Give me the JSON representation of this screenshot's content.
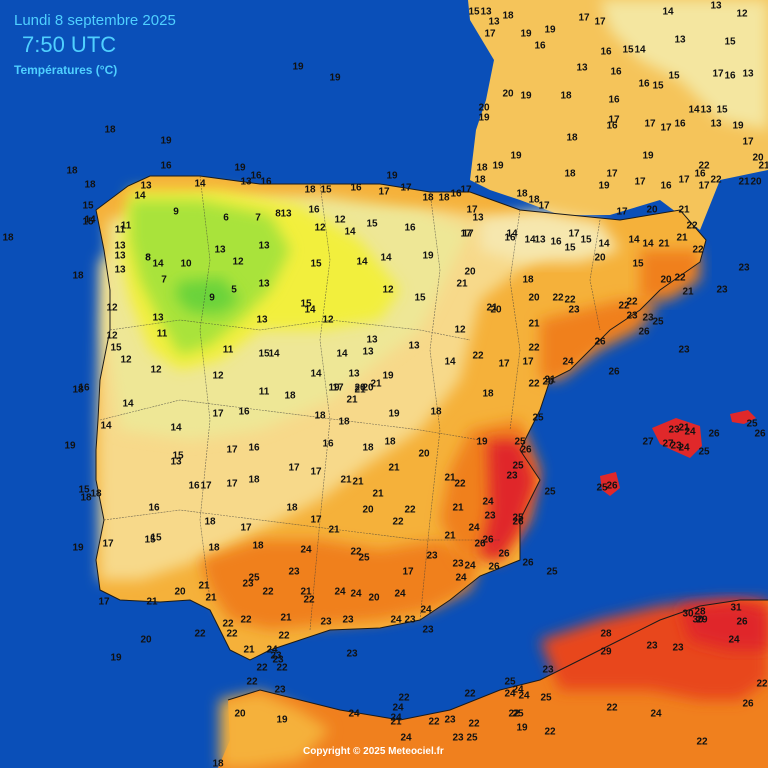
{
  "header": {
    "date": "Lundi 8 septembre 2025",
    "time": "7:50 UTC",
    "variable": "Températures (°C)"
  },
  "copyright": "Copyright © 2025 Meteociel.fr",
  "colors": {
    "sea": "#0a4fb8",
    "land_cool": "#e8e48a",
    "land_mild": "#f7d98a",
    "land_warm": "#f5b13a",
    "land_hot": "#f0801e",
    "land_vhot": "#e8461e",
    "land_red": "#e0282a",
    "land_yellow": "#f2ef3c",
    "land_green": "#a9e33a",
    "land_darkgreen": "#6ad33a",
    "header_text": "#4fd0ff"
  },
  "stations": [
    [
      "15",
      474,
      12
    ],
    [
      "13",
      486,
      12
    ],
    [
      "13",
      494,
      22
    ],
    [
      "18",
      508,
      16
    ],
    [
      "17",
      490,
      34
    ],
    [
      "17",
      584,
      18
    ],
    [
      "17",
      600,
      22
    ],
    [
      "14",
      668,
      12
    ],
    [
      "13",
      716,
      6
    ],
    [
      "12",
      742,
      14
    ],
    [
      "19",
      526,
      34
    ],
    [
      "19",
      550,
      30
    ],
    [
      "16",
      540,
      46
    ],
    [
      "19",
      298,
      67
    ],
    [
      "19",
      335,
      78
    ],
    [
      "18",
      110,
      130
    ],
    [
      "19",
      166,
      141
    ],
    [
      "18",
      72,
      171
    ],
    [
      "16",
      166,
      166
    ],
    [
      "18",
      90,
      185
    ],
    [
      "13",
      582,
      68
    ],
    [
      "16",
      606,
      52
    ],
    [
      "15",
      628,
      50
    ],
    [
      "14",
      640,
      50
    ],
    [
      "16",
      616,
      72
    ],
    [
      "15",
      674,
      76
    ],
    [
      "13",
      680,
      40
    ],
    [
      "15",
      730,
      42
    ],
    [
      "17",
      718,
      74
    ],
    [
      "16",
      730,
      76
    ],
    [
      "13",
      748,
      74
    ],
    [
      "18",
      566,
      96
    ],
    [
      "16",
      614,
      100
    ],
    [
      "16",
      644,
      84
    ],
    [
      "15",
      658,
      86
    ],
    [
      "14",
      694,
      110
    ],
    [
      "13",
      706,
      110
    ],
    [
      "15",
      722,
      110
    ],
    [
      "20",
      484,
      108
    ],
    [
      "19",
      484,
      118
    ],
    [
      "20",
      508,
      94
    ],
    [
      "19",
      526,
      96
    ],
    [
      "18",
      572,
      138
    ],
    [
      "17",
      614,
      120
    ],
    [
      "16",
      612,
      126
    ],
    [
      "17",
      650,
      124
    ],
    [
      "17",
      666,
      128
    ],
    [
      "16",
      680,
      124
    ],
    [
      "13",
      716,
      124
    ],
    [
      "19",
      738,
      126
    ],
    [
      "17",
      748,
      142
    ],
    [
      "20",
      758,
      158
    ],
    [
      "21",
      744,
      182
    ],
    [
      "20",
      756,
      182
    ],
    [
      "21",
      764,
      166
    ],
    [
      "18",
      482,
      168
    ],
    [
      "19",
      498,
      166
    ],
    [
      "19",
      516,
      156
    ],
    [
      "18",
      480,
      180
    ],
    [
      "18",
      570,
      174
    ],
    [
      "19",
      604,
      186
    ],
    [
      "17",
      612,
      174
    ],
    [
      "19",
      648,
      156
    ],
    [
      "17",
      640,
      182
    ],
    [
      "16",
      666,
      186
    ],
    [
      "17",
      684,
      180
    ],
    [
      "17",
      704,
      186
    ],
    [
      "22",
      704,
      166
    ],
    [
      "22",
      716,
      180
    ],
    [
      "16",
      700,
      174
    ],
    [
      "19",
      240,
      168
    ],
    [
      "16",
      256,
      176
    ],
    [
      "13",
      246,
      182
    ],
    [
      "16",
      266,
      182
    ],
    [
      "14",
      200,
      184
    ],
    [
      "13",
      146,
      186
    ],
    [
      "14",
      140,
      196
    ],
    [
      "18",
      310,
      190
    ],
    [
      "15",
      326,
      190
    ],
    [
      "16",
      356,
      188
    ],
    [
      "17",
      384,
      192
    ],
    [
      "17",
      406,
      188
    ],
    [
      "18",
      428,
      198
    ],
    [
      "18",
      444,
      198
    ],
    [
      "16",
      456,
      194
    ],
    [
      "17",
      466,
      190
    ],
    [
      "17",
      472,
      210
    ],
    [
      "18",
      522,
      194
    ],
    [
      "17",
      544,
      206
    ],
    [
      "18",
      534,
      200
    ],
    [
      "19",
      392,
      176
    ],
    [
      "15",
      88,
      206
    ],
    [
      "14",
      90,
      220
    ],
    [
      "11",
      126,
      226
    ],
    [
      "9",
      176,
      212
    ],
    [
      "6",
      226,
      218
    ],
    [
      "7",
      258,
      218
    ],
    [
      "8",
      278,
      214
    ],
    [
      "16",
      314,
      210
    ],
    [
      "13",
      286,
      214
    ],
    [
      "12",
      320,
      228
    ],
    [
      "12",
      340,
      220
    ],
    [
      "14",
      350,
      232
    ],
    [
      "15",
      372,
      224
    ],
    [
      "16",
      410,
      228
    ],
    [
      "13",
      478,
      218
    ],
    [
      "17",
      468,
      234
    ],
    [
      "17",
      466,
      234
    ],
    [
      "14",
      512,
      234
    ],
    [
      "16",
      510,
      238
    ],
    [
      "14",
      530,
      240
    ],
    [
      "13",
      540,
      240
    ],
    [
      "16",
      556,
      242
    ],
    [
      "17",
      574,
      234
    ],
    [
      "15",
      570,
      248
    ],
    [
      "15",
      586,
      240
    ],
    [
      "14",
      604,
      244
    ],
    [
      "14",
      634,
      240
    ],
    [
      "17",
      622,
      212
    ],
    [
      "20",
      652,
      210
    ],
    [
      "21",
      684,
      210
    ],
    [
      "22",
      692,
      226
    ],
    [
      "21",
      682,
      238
    ],
    [
      "14",
      648,
      244
    ],
    [
      "21",
      664,
      244
    ],
    [
      "22",
      698,
      250
    ],
    [
      "18",
      8,
      238
    ],
    [
      "15",
      88,
      222
    ],
    [
      "11",
      120,
      230
    ],
    [
      "13",
      120,
      246
    ],
    [
      "13",
      120,
      256
    ],
    [
      "14",
      158,
      264
    ],
    [
      "13",
      220,
      250
    ],
    [
      "13",
      264,
      246
    ],
    [
      "8",
      148,
      258
    ],
    [
      "10",
      186,
      264
    ],
    [
      "12",
      238,
      262
    ],
    [
      "15",
      316,
      264
    ],
    [
      "14",
      362,
      262
    ],
    [
      "14",
      386,
      258
    ],
    [
      "19",
      428,
      256
    ],
    [
      "20",
      470,
      272
    ],
    [
      "20",
      600,
      258
    ],
    [
      "15",
      638,
      264
    ],
    [
      "20",
      666,
      280
    ],
    [
      "22",
      680,
      278
    ],
    [
      "21",
      688,
      292
    ],
    [
      "18",
      78,
      276
    ],
    [
      "13",
      120,
      270
    ],
    [
      "8",
      148,
      258
    ],
    [
      "7",
      164,
      280
    ],
    [
      "9",
      212,
      298
    ],
    [
      "5",
      234,
      290
    ],
    [
      "13",
      264,
      284
    ],
    [
      "12",
      388,
      290
    ],
    [
      "21",
      462,
      284
    ],
    [
      "18",
      528,
      280
    ],
    [
      "20",
      534,
      298
    ],
    [
      "23",
      722,
      290
    ],
    [
      "23",
      744,
      268
    ],
    [
      "15",
      420,
      298
    ],
    [
      "15",
      306,
      304
    ],
    [
      "14",
      310,
      310
    ],
    [
      "12",
      112,
      308
    ],
    [
      "13",
      158,
      318
    ],
    [
      "21",
      492,
      308
    ],
    [
      "20",
      496,
      310
    ],
    [
      "22",
      558,
      298
    ],
    [
      "22",
      570,
      300
    ],
    [
      "23",
      574,
      310
    ],
    [
      "22",
      624,
      306
    ],
    [
      "22",
      632,
      302
    ],
    [
      "23",
      632,
      316
    ],
    [
      "23",
      648,
      318
    ],
    [
      "25",
      658,
      322
    ],
    [
      "26",
      644,
      332
    ],
    [
      "12",
      328,
      320
    ],
    [
      "13",
      262,
      320
    ],
    [
      "11",
      162,
      334
    ],
    [
      "12",
      112,
      336
    ],
    [
      "15",
      116,
      348
    ],
    [
      "12",
      126,
      360
    ],
    [
      "12",
      460,
      330
    ],
    [
      "21",
      534,
      324
    ],
    [
      "26",
      600,
      342
    ],
    [
      "13",
      372,
      340
    ],
    [
      "13",
      368,
      352
    ],
    [
      "15",
      264,
      354
    ],
    [
      "14",
      274,
      354
    ],
    [
      "14",
      342,
      354
    ],
    [
      "13",
      414,
      346
    ],
    [
      "11",
      228,
      350
    ],
    [
      "22",
      478,
      356
    ],
    [
      "22",
      534,
      348
    ],
    [
      "17",
      504,
      364
    ],
    [
      "17",
      528,
      362
    ],
    [
      "24",
      568,
      362
    ],
    [
      "23",
      684,
      350
    ],
    [
      "12",
      156,
      370
    ],
    [
      "12",
      218,
      376
    ],
    [
      "11",
      264,
      392
    ],
    [
      "14",
      316,
      374
    ],
    [
      "13",
      354,
      374
    ],
    [
      "17",
      338,
      388
    ],
    [
      "19",
      388,
      376
    ],
    [
      "21",
      376,
      384
    ],
    [
      "20",
      368,
      388
    ],
    [
      "19",
      334,
      388
    ],
    [
      "20",
      360,
      388
    ],
    [
      "21",
      360,
      390
    ],
    [
      "14",
      450,
      362
    ],
    [
      "26",
      614,
      372
    ],
    [
      "18",
      78,
      390
    ],
    [
      "16",
      84,
      388
    ],
    [
      "14",
      128,
      404
    ],
    [
      "18",
      290,
      396
    ],
    [
      "21",
      352,
      400
    ],
    [
      "22",
      534,
      384
    ],
    [
      "20",
      548,
      382
    ],
    [
      "21",
      550,
      380
    ],
    [
      "18",
      488,
      394
    ],
    [
      "17",
      218,
      414
    ],
    [
      "16",
      244,
      412
    ],
    [
      "18",
      320,
      416
    ],
    [
      "18",
      344,
      422
    ],
    [
      "19",
      394,
      414
    ],
    [
      "18",
      436,
      412
    ],
    [
      "25",
      538,
      418
    ],
    [
      "14",
      106,
      426
    ],
    [
      "14",
      176,
      428
    ],
    [
      "17",
      232,
      450
    ],
    [
      "16",
      254,
      448
    ],
    [
      "16",
      328,
      444
    ],
    [
      "18",
      368,
      448
    ],
    [
      "18",
      390,
      442
    ],
    [
      "19",
      482,
      442
    ],
    [
      "20",
      424,
      454
    ],
    [
      "25",
      520,
      442
    ],
    [
      "26",
      526,
      450
    ],
    [
      "25",
      518,
      466
    ],
    [
      "23",
      674,
      430
    ],
    [
      "21",
      684,
      428
    ],
    [
      "24",
      690,
      432
    ],
    [
      "26",
      714,
      434
    ],
    [
      "25",
      752,
      424
    ],
    [
      "26",
      760,
      434
    ],
    [
      "27",
      648,
      442
    ],
    [
      "27",
      668,
      444
    ],
    [
      "23",
      676,
      446
    ],
    [
      "24",
      684,
      448
    ],
    [
      "25",
      704,
      452
    ],
    [
      "19",
      70,
      446
    ],
    [
      "13",
      176,
      462
    ],
    [
      "15",
      178,
      456
    ],
    [
      "17",
      294,
      468
    ],
    [
      "17",
      316,
      472
    ],
    [
      "21",
      394,
      468
    ],
    [
      "21",
      450,
      478
    ],
    [
      "22",
      460,
      484
    ],
    [
      "23",
      512,
      476
    ],
    [
      "25",
      550,
      492
    ],
    [
      "15",
      84,
      490
    ],
    [
      "18",
      96,
      494
    ],
    [
      "18",
      86,
      498
    ],
    [
      "16",
      194,
      486
    ],
    [
      "17",
      206,
      486
    ],
    [
      "17",
      232,
      484
    ],
    [
      "18",
      254,
      480
    ],
    [
      "21",
      346,
      480
    ],
    [
      "21",
      358,
      482
    ],
    [
      "21",
      378,
      494
    ],
    [
      "24",
      488,
      502
    ],
    [
      "26",
      612,
      486
    ],
    [
      "25",
      602,
      488
    ],
    [
      "16",
      154,
      508
    ],
    [
      "18",
      292,
      508
    ],
    [
      "20",
      368,
      510
    ],
    [
      "22",
      410,
      510
    ],
    [
      "21",
      458,
      508
    ],
    [
      "23",
      490,
      516
    ],
    [
      "25",
      518,
      518
    ],
    [
      "26",
      518,
      522
    ],
    [
      "18",
      210,
      522
    ],
    [
      "17",
      246,
      528
    ],
    [
      "17",
      316,
      520
    ],
    [
      "21",
      334,
      530
    ],
    [
      "22",
      398,
      522
    ],
    [
      "24",
      474,
      528
    ],
    [
      "15",
      150,
      540
    ],
    [
      "15",
      156,
      538
    ],
    [
      "21",
      450,
      536
    ],
    [
      "26",
      480,
      544
    ],
    [
      "26",
      488,
      540
    ],
    [
      "19",
      78,
      548
    ],
    [
      "17",
      108,
      544
    ],
    [
      "18",
      214,
      548
    ],
    [
      "18",
      258,
      546
    ],
    [
      "24",
      306,
      550
    ],
    [
      "22",
      356,
      552
    ],
    [
      "25",
      364,
      558
    ],
    [
      "23",
      432,
      556
    ],
    [
      "26",
      504,
      554
    ],
    [
      "24",
      470,
      566
    ],
    [
      "26",
      528,
      563
    ],
    [
      "23",
      294,
      572
    ],
    [
      "17",
      408,
      572
    ],
    [
      "23",
      458,
      564
    ],
    [
      "26",
      494,
      567
    ],
    [
      "25",
      552,
      572
    ],
    [
      "25",
      254,
      578
    ],
    [
      "23",
      248,
      584
    ],
    [
      "24",
      461,
      578
    ],
    [
      "17",
      104,
      602
    ],
    [
      "21",
      152,
      602
    ],
    [
      "20",
      180,
      592
    ],
    [
      "21",
      204,
      586
    ],
    [
      "21",
      211,
      598
    ],
    [
      "22",
      268,
      592
    ],
    [
      "21",
      306,
      592
    ],
    [
      "22",
      309,
      600
    ],
    [
      "24",
      340,
      592
    ],
    [
      "24",
      356,
      594
    ],
    [
      "20",
      374,
      598
    ],
    [
      "24",
      400,
      594
    ],
    [
      "24",
      426,
      610
    ],
    [
      "22",
      200,
      634
    ],
    [
      "22",
      228,
      624
    ],
    [
      "22",
      246,
      620
    ],
    [
      "21",
      286,
      618
    ],
    [
      "22",
      232,
      634
    ],
    [
      "23",
      326,
      622
    ],
    [
      "22",
      284,
      636
    ],
    [
      "21",
      249,
      650
    ],
    [
      "23",
      348,
      620
    ],
    [
      "24",
      396,
      620
    ],
    [
      "23",
      410,
      620
    ],
    [
      "23",
      428,
      630
    ],
    [
      "20",
      146,
      640
    ],
    [
      "19",
      116,
      658
    ],
    [
      "24",
      272,
      650
    ],
    [
      "23",
      278,
      660
    ],
    [
      "22",
      282,
      668
    ],
    [
      "22",
      262,
      668
    ],
    [
      "23",
      276,
      656
    ],
    [
      "23",
      352,
      654
    ],
    [
      "28",
      606,
      634
    ],
    [
      "30",
      688,
      614
    ],
    [
      "28",
      700,
      612
    ],
    [
      "30",
      698,
      620
    ],
    [
      "29",
      702,
      620
    ],
    [
      "31",
      736,
      608
    ],
    [
      "26",
      742,
      622
    ],
    [
      "29",
      606,
      652
    ],
    [
      "23",
      652,
      646
    ],
    [
      "23",
      678,
      648
    ],
    [
      "24",
      734,
      640
    ],
    [
      "22",
      252,
      682
    ],
    [
      "23",
      280,
      690
    ],
    [
      "25",
      510,
      682
    ],
    [
      "24",
      510,
      694
    ],
    [
      "24",
      518,
      690
    ],
    [
      "22",
      470,
      694
    ],
    [
      "23",
      548,
      670
    ],
    [
      "22",
      762,
      684
    ],
    [
      "22",
      404,
      698
    ],
    [
      "24",
      398,
      708
    ],
    [
      "24",
      524,
      696
    ],
    [
      "25",
      546,
      698
    ],
    [
      "25",
      518,
      714
    ],
    [
      "22",
      612,
      708
    ],
    [
      "24",
      656,
      714
    ],
    [
      "26",
      748,
      704
    ],
    [
      "19",
      282,
      720
    ],
    [
      "24",
      354,
      714
    ],
    [
      "24",
      396,
      718
    ],
    [
      "21",
      396,
      722
    ],
    [
      "22",
      434,
      722
    ],
    [
      "23",
      450,
      720
    ],
    [
      "22",
      474,
      724
    ],
    [
      "22",
      514,
      714
    ],
    [
      "23",
      458,
      738
    ],
    [
      "25",
      472,
      738
    ],
    [
      "24",
      406,
      738
    ],
    [
      "19",
      522,
      728
    ],
    [
      "22",
      550,
      732
    ],
    [
      "22",
      702,
      742
    ],
    [
      "20",
      240,
      714
    ],
    [
      "18",
      218,
      764
    ]
  ]
}
